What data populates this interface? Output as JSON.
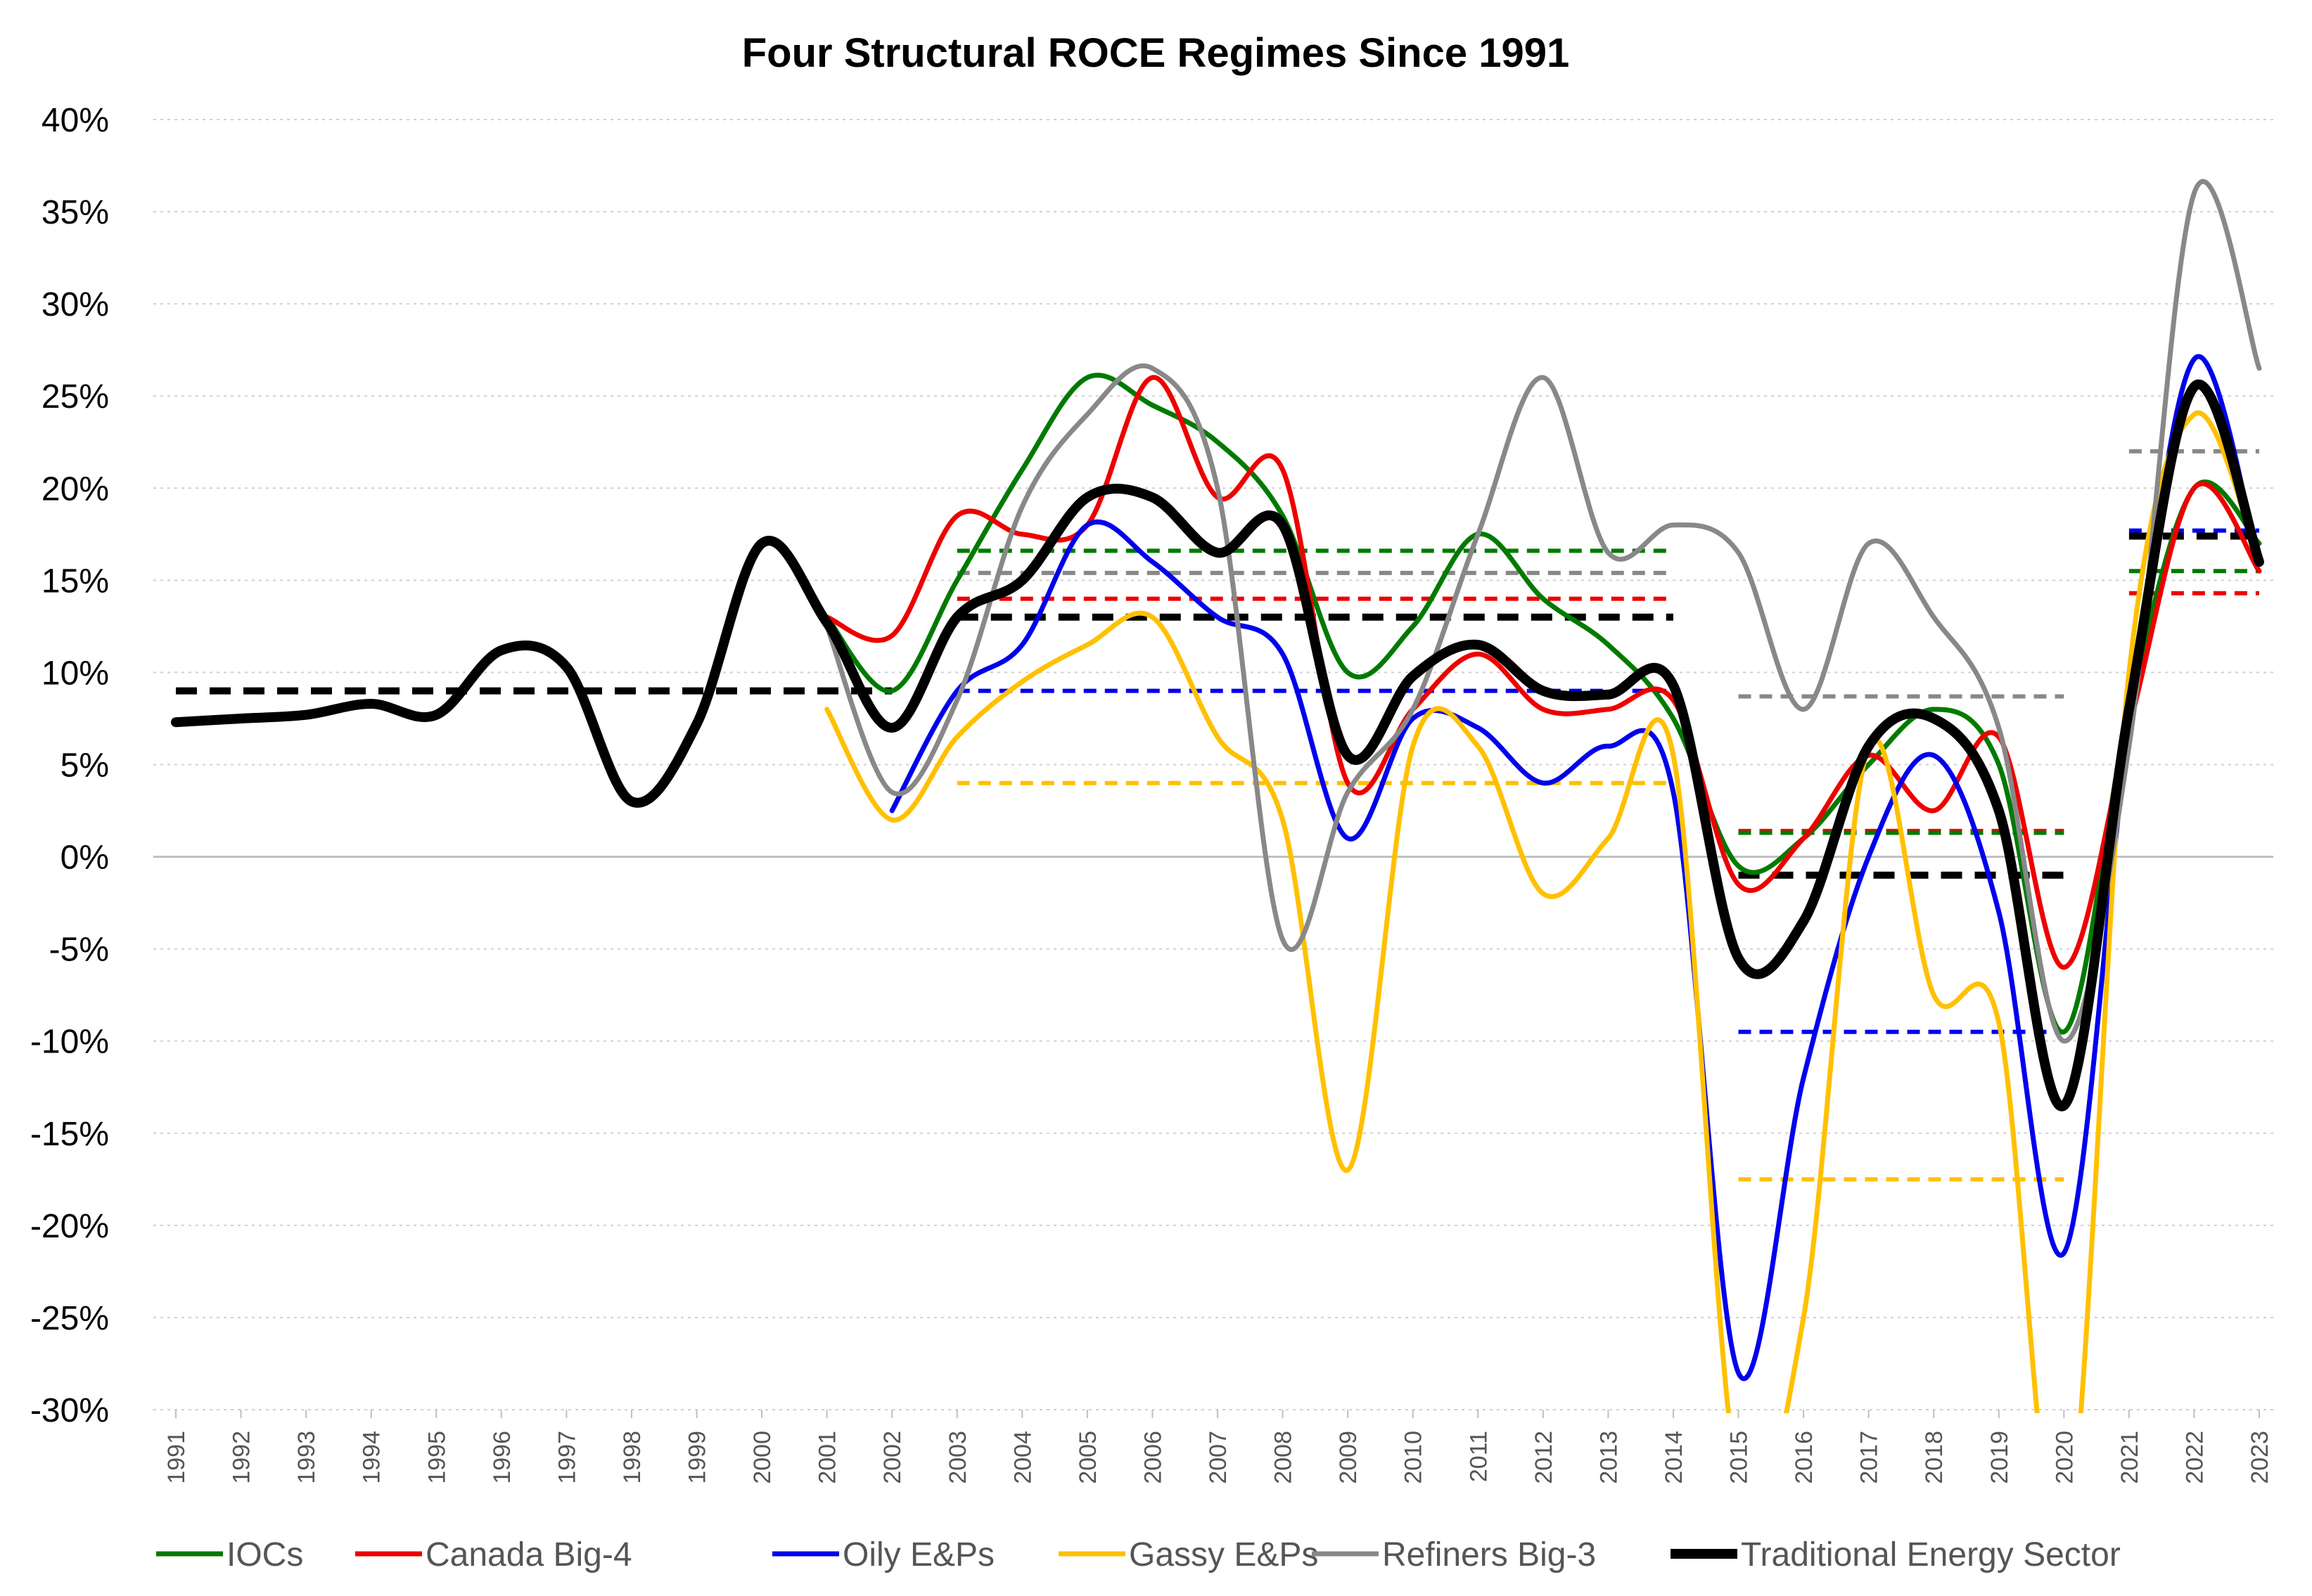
{
  "chart_data": {
    "type": "line",
    "title": "Four Structural ROCE Regimes Since 1991",
    "xlabel": "",
    "ylabel": "",
    "ylim": [
      -0.3,
      0.4
    ],
    "y_ticks": [
      -0.3,
      -0.25,
      -0.2,
      -0.15,
      -0.1,
      -0.05,
      0.0,
      0.05,
      0.1,
      0.15,
      0.2,
      0.25,
      0.3,
      0.35,
      0.4
    ],
    "y_tick_labels": [
      "-30%",
      "-25%",
      "-20%",
      "-15%",
      "-10%",
      "-5%",
      "0%",
      "5%",
      "10%",
      "15%",
      "20%",
      "25%",
      "30%",
      "35%",
      "40%"
    ],
    "x": [
      1991,
      1992,
      1993,
      1994,
      1995,
      1996,
      1997,
      1998,
      1999,
      2000,
      2001,
      2002,
      2003,
      2004,
      2005,
      2006,
      2007,
      2008,
      2009,
      2010,
      2011,
      2012,
      2013,
      2014,
      2015,
      2016,
      2017,
      2018,
      2019,
      2020,
      2021,
      2022,
      2023
    ],
    "x_tick_labels": [
      "1991",
      "1992",
      "1993",
      "1994",
      "1995",
      "1996",
      "1997",
      "1998",
      "1999",
      "2000",
      "2001",
      "2002",
      "2003",
      "2004",
      "2005",
      "2006",
      "2007",
      "2008",
      "2009",
      "2010",
      "2011",
      "2012",
      "2013",
      "2014",
      "2015",
      "2016",
      "2017",
      "2018",
      "2019",
      "2020",
      "2021",
      "2022",
      "2023"
    ],
    "grid": true,
    "legend_position": "bottom",
    "series": [
      {
        "name": "IOCs",
        "color": "#007A00",
        "width": 7,
        "values": [
          null,
          null,
          null,
          null,
          null,
          null,
          null,
          null,
          null,
          null,
          0.13,
          0.09,
          0.15,
          0.21,
          0.26,
          0.245,
          0.225,
          0.185,
          0.1,
          0.125,
          0.175,
          0.14,
          0.115,
          0.075,
          -0.005,
          0.01,
          0.05,
          0.08,
          0.05,
          -0.095,
          0.08,
          0.2,
          0.17
        ]
      },
      {
        "name": "Canada Big-4",
        "color": "#EE0000",
        "width": 7,
        "values": [
          null,
          null,
          null,
          null,
          null,
          null,
          null,
          null,
          null,
          null,
          0.13,
          0.12,
          0.185,
          0.175,
          0.18,
          0.26,
          0.195,
          0.21,
          0.04,
          0.08,
          0.11,
          0.08,
          0.08,
          0.085,
          -0.015,
          0.01,
          0.055,
          0.025,
          0.065,
          -0.06,
          0.07,
          0.2,
          0.155
        ]
      },
      {
        "name": "Oily E&Ps",
        "color": "#0000EE",
        "width": 7,
        "values": [
          null,
          null,
          null,
          null,
          null,
          null,
          null,
          null,
          null,
          null,
          null,
          0.025,
          0.09,
          0.115,
          0.18,
          0.16,
          0.13,
          0.11,
          0.01,
          0.075,
          0.07,
          0.04,
          0.06,
          0.035,
          -0.28,
          -0.12,
          0.0,
          0.055,
          -0.03,
          -0.215,
          0.07,
          0.27,
          0.16
        ]
      },
      {
        "name": "Gassy E&Ps",
        "color": "#FFC000",
        "width": 7,
        "values": [
          null,
          null,
          null,
          null,
          null,
          null,
          null,
          null,
          null,
          null,
          0.08,
          0.02,
          0.065,
          0.095,
          0.115,
          0.13,
          0.065,
          0.02,
          -0.17,
          0.06,
          0.06,
          -0.02,
          0.01,
          0.055,
          -0.34,
          -0.25,
          0.06,
          -0.075,
          -0.09,
          -0.38,
          0.1,
          0.24,
          0.16
        ]
      },
      {
        "name": "Refiners Big-3",
        "color": "#888888",
        "width": 7,
        "values": [
          null,
          null,
          null,
          null,
          null,
          null,
          null,
          null,
          null,
          null,
          0.125,
          0.035,
          0.085,
          0.19,
          0.24,
          0.265,
          0.2,
          -0.045,
          0.035,
          0.08,
          0.175,
          0.26,
          0.165,
          0.18,
          0.165,
          0.08,
          0.17,
          0.13,
          0.07,
          -0.1,
          0.06,
          0.36,
          0.265
        ]
      },
      {
        "name": "Traditional Energy Sector",
        "color": "#000000",
        "width": 14,
        "values": [
          0.073,
          0.075,
          0.077,
          0.083,
          0.077,
          0.112,
          0.103,
          0.03,
          0.072,
          0.17,
          0.127,
          0.07,
          0.13,
          0.15,
          0.195,
          0.195,
          0.165,
          0.18,
          0.055,
          0.098,
          0.115,
          0.09,
          0.088,
          0.093,
          -0.055,
          -0.035,
          0.06,
          0.075,
          0.025,
          -0.135,
          0.08,
          0.255,
          0.16
        ]
      }
    ],
    "regime_averages": [
      {
        "series": "Traditional Energy Sector",
        "color": "#000000",
        "width": 10,
        "from": 1991,
        "to": 2002,
        "value": 0.09
      },
      {
        "series": "IOCs",
        "color": "#007A00",
        "width": 6,
        "from": 2003,
        "to": 2014,
        "value": 0.166
      },
      {
        "series": "Refiners Big-3",
        "color": "#888888",
        "width": 6,
        "from": 2003,
        "to": 2014,
        "value": 0.154
      },
      {
        "series": "Canada Big-4",
        "color": "#EE0000",
        "width": 6,
        "from": 2003,
        "to": 2014,
        "value": 0.14
      },
      {
        "series": "Traditional Energy Sector",
        "color": "#000000",
        "width": 10,
        "from": 2003,
        "to": 2014,
        "value": 0.13
      },
      {
        "series": "Oily E&Ps",
        "color": "#0000EE",
        "width": 6,
        "from": 2003,
        "to": 2014,
        "value": 0.09
      },
      {
        "series": "Gassy E&Ps",
        "color": "#FFC000",
        "width": 6,
        "from": 2003,
        "to": 2014,
        "value": 0.04
      },
      {
        "series": "Refiners Big-3",
        "color": "#888888",
        "width": 6,
        "from": 2015,
        "to": 2020,
        "value": 0.087
      },
      {
        "series": "Canada Big-4",
        "color": "#EE0000",
        "width": 6,
        "from": 2015,
        "to": 2020,
        "value": 0.014
      },
      {
        "series": "IOCs",
        "color": "#007A00",
        "width": 6,
        "from": 2015,
        "to": 2020,
        "value": 0.013
      },
      {
        "series": "Traditional Energy Sector",
        "color": "#000000",
        "width": 10,
        "from": 2015,
        "to": 2020,
        "value": -0.01
      },
      {
        "series": "Oily E&Ps",
        "color": "#0000EE",
        "width": 6,
        "from": 2015,
        "to": 2020,
        "value": -0.095
      },
      {
        "series": "Gassy E&Ps",
        "color": "#FFC000",
        "width": 6,
        "from": 2015,
        "to": 2020,
        "value": -0.175
      },
      {
        "series": "Refiners Big-3",
        "color": "#888888",
        "width": 6,
        "from": 2021,
        "to": 2023,
        "value": 0.22
      },
      {
        "series": "Oily E&Ps",
        "color": "#0000EE",
        "width": 6,
        "from": 2021,
        "to": 2023,
        "value": 0.177
      },
      {
        "series": "Traditional Energy Sector",
        "color": "#000000",
        "width": 10,
        "from": 2021,
        "to": 2023,
        "value": 0.174
      },
      {
        "series": "IOCs",
        "color": "#007A00",
        "width": 6,
        "from": 2021,
        "to": 2023,
        "value": 0.155
      },
      {
        "series": "Canada Big-4",
        "color": "#EE0000",
        "width": 6,
        "from": 2021,
        "to": 2023,
        "value": 0.143
      }
    ]
  }
}
